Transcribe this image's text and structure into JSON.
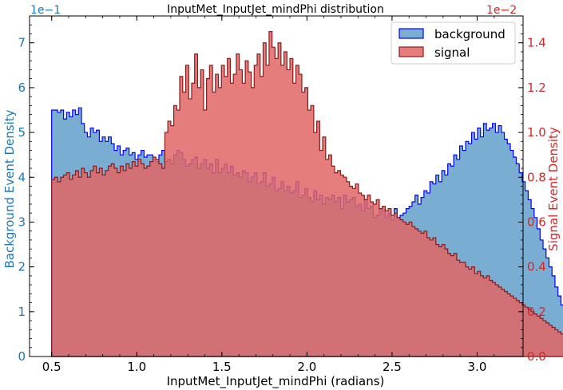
{
  "chart_data": {
    "type": "area",
    "title": "InputMet_InputJet_mindPhi distribution",
    "xlabel": "InputMet_InputJet_mindPhi (radians)",
    "xlim": [
      0.37,
      3.27
    ],
    "x_ticks": [
      0.5,
      1.0,
      1.5,
      2.0,
      2.5,
      3.0
    ],
    "x_tick_labels": [
      "0.5",
      "1.0",
      "1.5",
      "2.0",
      "2.5",
      "3.0"
    ],
    "y_left": {
      "label": "Background Event Density",
      "offset_text": "1e−1",
      "scale": 0.1,
      "lim": [
        0,
        7.6
      ],
      "ticks": [
        0,
        1,
        2,
        3,
        4,
        5,
        6,
        7
      ],
      "tick_labels": [
        "0",
        "1",
        "2",
        "3",
        "4",
        "5",
        "6",
        "7"
      ],
      "color": "#1f77b4"
    },
    "y_right": {
      "label": "Signal Event Density",
      "offset_text": "1e−2",
      "scale": 0.01,
      "lim": [
        0,
        1.52
      ],
      "ticks": [
        0,
        0.2,
        0.4,
        0.6,
        0.8,
        1.0,
        1.2,
        1.4
      ],
      "tick_labels": [
        "0.0",
        "0.2",
        "0.4",
        "0.6",
        "0.8",
        "1.0",
        "1.2",
        "1.4"
      ],
      "color": "#d62728"
    },
    "legend": {
      "position": "top-right",
      "entries": [
        "background",
        "signal"
      ]
    },
    "bin_start": 0.5,
    "bin_width": 0.0175,
    "series": [
      {
        "name": "background",
        "axis": "left",
        "fill": "#1f77b4",
        "edge": "#0000ff",
        "values": [
          5.5,
          5.5,
          5.45,
          5.5,
          5.3,
          5.45,
          5.35,
          5.5,
          5.4,
          5.55,
          5.2,
          5.0,
          4.9,
          5.1,
          5.0,
          5.05,
          4.8,
          4.9,
          4.8,
          4.9,
          4.75,
          4.6,
          4.7,
          4.5,
          4.6,
          4.65,
          4.5,
          4.55,
          4.4,
          4.5,
          4.6,
          4.45,
          4.5,
          4.5,
          4.4,
          4.35,
          4.5,
          4.6,
          4.35,
          4.4,
          4.3,
          4.5,
          4.6,
          4.55,
          4.4,
          4.25,
          4.3,
          4.4,
          4.45,
          4.2,
          4.3,
          4.4,
          4.2,
          4.3,
          4.1,
          4.4,
          4.1,
          4.2,
          4.3,
          4.1,
          4.25,
          4.05,
          4.1,
          4.0,
          4.15,
          4.1,
          3.9,
          4.0,
          4.1,
          3.85,
          3.9,
          4.1,
          3.8,
          3.85,
          4.0,
          3.7,
          3.75,
          3.9,
          3.7,
          3.8,
          3.65,
          3.7,
          3.9,
          3.55,
          3.6,
          3.75,
          3.55,
          3.45,
          3.7,
          3.5,
          3.6,
          3.4,
          3.55,
          3.5,
          3.6,
          3.45,
          3.55,
          3.3,
          3.6,
          3.45,
          3.5,
          3.55,
          3.35,
          3.4,
          3.25,
          3.5,
          3.3,
          3.35,
          3.1,
          3.15,
          3.3,
          3.25,
          3.1,
          3.2,
          3.05,
          3.3,
          3.1,
          3.15,
          3.2,
          3.3,
          3.35,
          3.45,
          3.6,
          3.4,
          3.55,
          3.7,
          3.65,
          3.9,
          3.85,
          4.05,
          3.9,
          4.15,
          4.05,
          4.3,
          4.25,
          4.5,
          4.4,
          4.7,
          4.6,
          4.8,
          4.75,
          5.0,
          4.85,
          5.1,
          4.9,
          5.2,
          5.05,
          5.1,
          5.2,
          5.0,
          5.15,
          5.0,
          4.85,
          4.75,
          4.6,
          4.45,
          4.3,
          4.1,
          3.9,
          3.7,
          3.5,
          3.3,
          3.1,
          2.85,
          2.6,
          2.4,
          2.2,
          2.0,
          1.8,
          1.55,
          1.35,
          1.15,
          1.0,
          0.8,
          0.6,
          0.45,
          0.3,
          0.2,
          0.12,
          0.08,
          0.05
        ]
      },
      {
        "name": "signal",
        "axis": "right",
        "fill": "#e06666",
        "edge": "#8b1a1a",
        "values": [
          0.79,
          0.8,
          0.78,
          0.8,
          0.81,
          0.82,
          0.79,
          0.81,
          0.83,
          0.8,
          0.84,
          0.82,
          0.8,
          0.83,
          0.85,
          0.82,
          0.84,
          0.81,
          0.83,
          0.85,
          0.86,
          0.84,
          0.82,
          0.85,
          0.83,
          0.86,
          0.84,
          0.87,
          0.85,
          0.88,
          0.86,
          0.84,
          0.85,
          0.87,
          0.89,
          0.88,
          0.86,
          0.84,
          1.0,
          1.05,
          1.03,
          1.12,
          1.1,
          1.25,
          1.18,
          1.3,
          1.15,
          1.22,
          1.35,
          1.2,
          1.28,
          1.1,
          1.24,
          1.3,
          1.18,
          1.26,
          1.2,
          1.3,
          1.25,
          1.33,
          1.22,
          1.26,
          1.35,
          1.28,
          1.22,
          1.32,
          1.27,
          1.2,
          1.3,
          1.35,
          1.25,
          1.4,
          1.3,
          1.45,
          1.38,
          1.33,
          1.4,
          1.3,
          1.36,
          1.28,
          1.33,
          1.22,
          1.3,
          1.26,
          1.18,
          1.2,
          1.1,
          1.12,
          1.0,
          1.05,
          0.92,
          0.98,
          0.88,
          0.9,
          0.85,
          0.82,
          0.83,
          0.81,
          0.8,
          0.78,
          0.76,
          0.75,
          0.77,
          0.73,
          0.72,
          0.7,
          0.72,
          0.69,
          0.68,
          0.7,
          0.66,
          0.67,
          0.65,
          0.66,
          0.63,
          0.64,
          0.62,
          0.61,
          0.6,
          0.59,
          0.6,
          0.58,
          0.57,
          0.56,
          0.55,
          0.56,
          0.53,
          0.52,
          0.53,
          0.5,
          0.49,
          0.5,
          0.48,
          0.46,
          0.45,
          0.46,
          0.43,
          0.42,
          0.42,
          0.4,
          0.39,
          0.4,
          0.37,
          0.38,
          0.36,
          0.35,
          0.36,
          0.34,
          0.33,
          0.32,
          0.31,
          0.3,
          0.29,
          0.28,
          0.27,
          0.26,
          0.25,
          0.24,
          0.23,
          0.22,
          0.21,
          0.2,
          0.19,
          0.18,
          0.17,
          0.16,
          0.15,
          0.14,
          0.13,
          0.12,
          0.11,
          0.1,
          0.09,
          0.08,
          0.07,
          0.06,
          0.05,
          0.04
        ]
      }
    ]
  }
}
